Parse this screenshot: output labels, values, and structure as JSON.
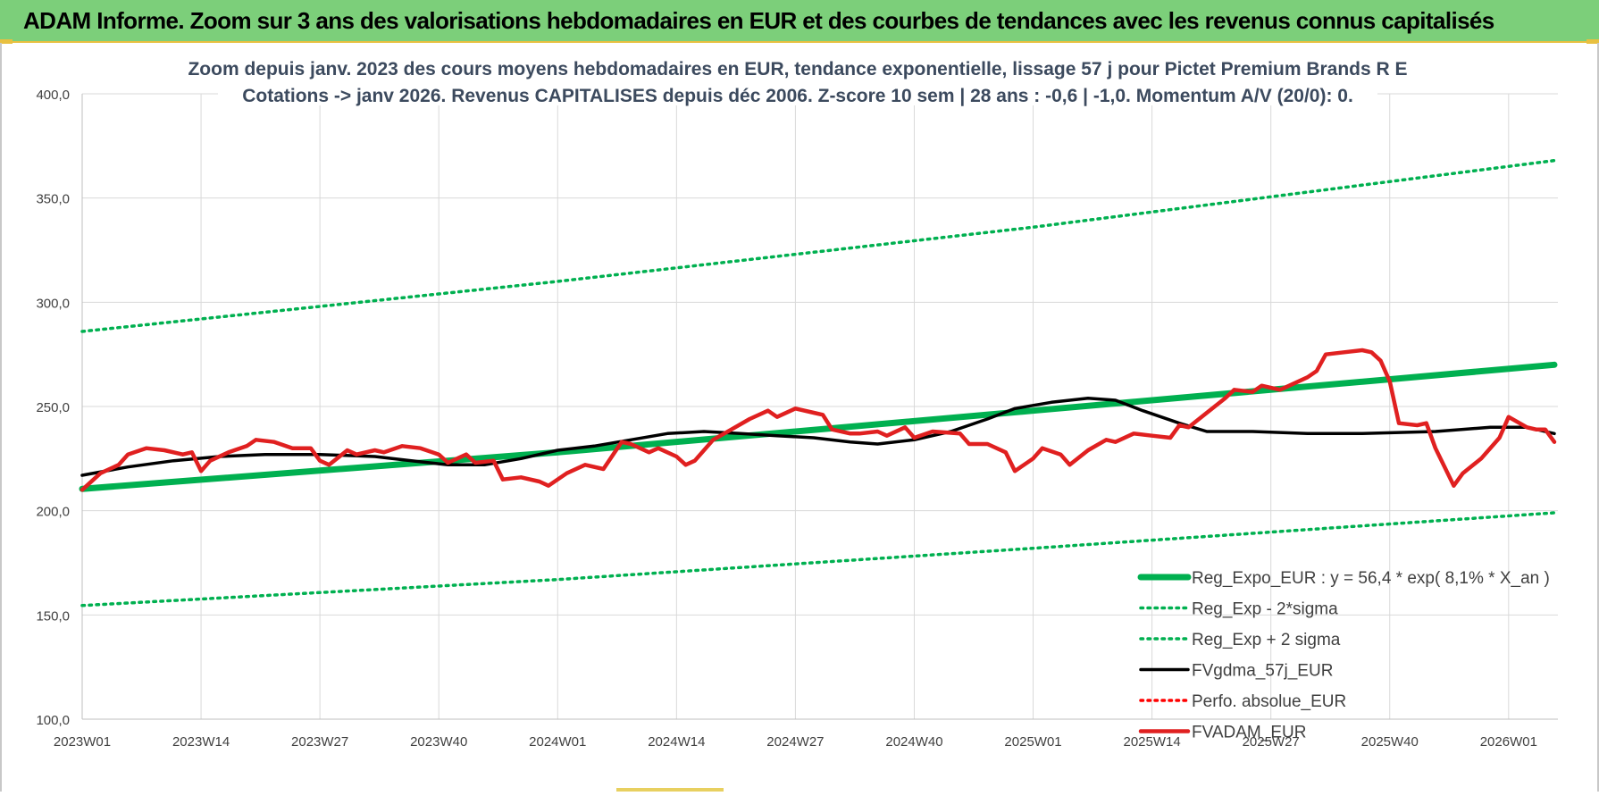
{
  "banner": {
    "title": "ADAM Informe. Zoom sur 3 ans des valorisations hebdomadaires en EUR et des courbes de tendances avec les revenus connus capitalisés"
  },
  "chart_data": {
    "type": "line",
    "title_line1": "Zoom depuis janv. 2023 des cours moyens hebdomadaires en EUR, tendance exponentielle, lissage 57 j pour Pictet Premium Brands R E",
    "title_line2": "Cotations -> janv 2026. Revenus CAPITALISES depuis déc 2006. Z-score 10 sem | 28 ans : -0,6 | -1,0. Momentum A/V (20/0): 0.",
    "xlabel": "",
    "ylabel": "",
    "ylim": [
      100,
      400
    ],
    "yticks": [
      "400,0",
      "350,0",
      "300,0",
      "250,0",
      "200,0",
      "150,0",
      "100,0"
    ],
    "ytick_values": [
      400,
      350,
      300,
      250,
      200,
      150,
      100
    ],
    "xticks": [
      "2023W01",
      "2023W14",
      "2023W27",
      "2023W40",
      "2024W01",
      "2024W14",
      "2024W27",
      "2024W40",
      "2025W01",
      "2025W14",
      "2025W27",
      "2025W40",
      "2026W01"
    ],
    "xtick_week_index": [
      0,
      13,
      26,
      39,
      52,
      65,
      78,
      91,
      104,
      117,
      130,
      143,
      156
    ],
    "x_week_range": [
      0,
      161
    ],
    "grid": true,
    "legend_position": "bottom-right",
    "series": [
      {
        "name": "Reg_Expo_EUR : y = 56,4 * exp( 8,1% * X_an )",
        "color": "#00b050",
        "style": "solid-thick",
        "points": [
          [
            0,
            210.5
          ],
          [
            52,
            228
          ],
          [
            104,
            248
          ],
          [
            161,
            270
          ]
        ]
      },
      {
        "name": "Reg_Exp - 2*sigma",
        "color": "#00b050",
        "style": "dotted",
        "points": [
          [
            0,
            154.5
          ],
          [
            52,
            167
          ],
          [
            104,
            182
          ],
          [
            161,
            199
          ]
        ]
      },
      {
        "name": "Reg_Exp + 2 sigma",
        "color": "#00b050",
        "style": "dotted",
        "points": [
          [
            0,
            286
          ],
          [
            52,
            310
          ],
          [
            104,
            336
          ],
          [
            161,
            368
          ]
        ]
      },
      {
        "name": "FVgdma_57j_EUR",
        "color": "#000000",
        "style": "solid",
        "points": [
          [
            0,
            217
          ],
          [
            5,
            221
          ],
          [
            10,
            224
          ],
          [
            15,
            226
          ],
          [
            20,
            227
          ],
          [
            26,
            227
          ],
          [
            32,
            226
          ],
          [
            36,
            224
          ],
          [
            40,
            222
          ],
          [
            44,
            222
          ],
          [
            48,
            225
          ],
          [
            52,
            229
          ],
          [
            56,
            231
          ],
          [
            60,
            234
          ],
          [
            64,
            237
          ],
          [
            68,
            238
          ],
          [
            72,
            237
          ],
          [
            76,
            236
          ],
          [
            80,
            235
          ],
          [
            84,
            233
          ],
          [
            87,
            232
          ],
          [
            91,
            234
          ],
          [
            95,
            238
          ],
          [
            99,
            244
          ],
          [
            102,
            249
          ],
          [
            106,
            252
          ],
          [
            110,
            254
          ],
          [
            113,
            253
          ],
          [
            116,
            248
          ],
          [
            120,
            242
          ],
          [
            123,
            238
          ],
          [
            128,
            238
          ],
          [
            134,
            237
          ],
          [
            140,
            237
          ],
          [
            148,
            238
          ],
          [
            154,
            240
          ],
          [
            158,
            240
          ],
          [
            161,
            237
          ]
        ]
      },
      {
        "name": "Perfo. absolue_EUR",
        "color": "#ff0000",
        "style": "dotted",
        "points": []
      },
      {
        "name": "FVADAM_EUR",
        "color": "#e02020",
        "style": "solid-thick",
        "points": [
          [
            0,
            210
          ],
          [
            2,
            218
          ],
          [
            4,
            222
          ],
          [
            5,
            227
          ],
          [
            7,
            230
          ],
          [
            9,
            229
          ],
          [
            11,
            227
          ],
          [
            12,
            228
          ],
          [
            13,
            219
          ],
          [
            14,
            224
          ],
          [
            16,
            228
          ],
          [
            18,
            231
          ],
          [
            19,
            234
          ],
          [
            21,
            233
          ],
          [
            23,
            230
          ],
          [
            25,
            230
          ],
          [
            26,
            224
          ],
          [
            27,
            222
          ],
          [
            29,
            229
          ],
          [
            30,
            227
          ],
          [
            32,
            229
          ],
          [
            33,
            228
          ],
          [
            35,
            231
          ],
          [
            37,
            230
          ],
          [
            39,
            227
          ],
          [
            40,
            223
          ],
          [
            42,
            227
          ],
          [
            43,
            223
          ],
          [
            45,
            224
          ],
          [
            46,
            215
          ],
          [
            48,
            216
          ],
          [
            50,
            214
          ],
          [
            51,
            212
          ],
          [
            53,
            218
          ],
          [
            55,
            222
          ],
          [
            57,
            220
          ],
          [
            59,
            233
          ],
          [
            60,
            232
          ],
          [
            62,
            228
          ],
          [
            63,
            230
          ],
          [
            65,
            226
          ],
          [
            66,
            222
          ],
          [
            67,
            224
          ],
          [
            69,
            234
          ],
          [
            71,
            239
          ],
          [
            73,
            244
          ],
          [
            75,
            248
          ],
          [
            76,
            245
          ],
          [
            78,
            249
          ],
          [
            80,
            247
          ],
          [
            81,
            246
          ],
          [
            82,
            239
          ],
          [
            84,
            237
          ],
          [
            85,
            237
          ],
          [
            87,
            238
          ],
          [
            88,
            236
          ],
          [
            90,
            240
          ],
          [
            91,
            235
          ],
          [
            93,
            238
          ],
          [
            96,
            237
          ],
          [
            97,
            232
          ],
          [
            99,
            232
          ],
          [
            101,
            228
          ],
          [
            102,
            219
          ],
          [
            104,
            225
          ],
          [
            105,
            230
          ],
          [
            107,
            227
          ],
          [
            108,
            222
          ],
          [
            110,
            229
          ],
          [
            112,
            234
          ],
          [
            113,
            233
          ],
          [
            115,
            237
          ],
          [
            117,
            236
          ],
          [
            119,
            235
          ],
          [
            120,
            241
          ],
          [
            121,
            240
          ],
          [
            123,
            247
          ],
          [
            125,
            254
          ],
          [
            126,
            258
          ],
          [
            128,
            257
          ],
          [
            129,
            260
          ],
          [
            131,
            258
          ],
          [
            132,
            260
          ],
          [
            134,
            264
          ],
          [
            135,
            267
          ],
          [
            136,
            275
          ],
          [
            138,
            276
          ],
          [
            140,
            277
          ],
          [
            141,
            276
          ],
          [
            142,
            272
          ],
          [
            143,
            262
          ],
          [
            144,
            242
          ],
          [
            146,
            241
          ],
          [
            147,
            242
          ],
          [
            148,
            230
          ],
          [
            150,
            212
          ],
          [
            151,
            218
          ],
          [
            153,
            225
          ],
          [
            155,
            235
          ],
          [
            156,
            245
          ],
          [
            158,
            240
          ],
          [
            159,
            239
          ],
          [
            160,
            239
          ],
          [
            161,
            233
          ]
        ]
      }
    ]
  }
}
